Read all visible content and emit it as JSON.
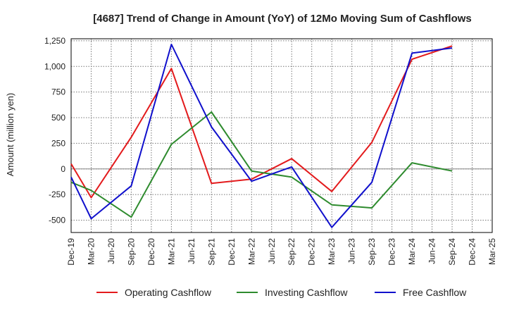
{
  "chart_data": {
    "type": "line",
    "title": "[4687]  Trend of Change in Amount (YoY) of 12Mo Moving Sum of Cashflows",
    "xlabel": "",
    "ylabel": "Amount (million yen)",
    "ylim": [
      -620,
      1270
    ],
    "yticks": [
      -500,
      -250,
      0,
      250,
      500,
      750,
      1000,
      1250
    ],
    "ytick_labels": [
      "-500",
      "-250",
      "0",
      "250",
      "500",
      "750",
      "1,000",
      "1,250"
    ],
    "categories": [
      "Dec-19",
      "Mar-20",
      "Jun-20",
      "Sep-20",
      "Dec-20",
      "Mar-21",
      "Jun-21",
      "Sep-21",
      "Dec-21",
      "Mar-22",
      "Jun-22",
      "Sep-22",
      "Dec-22",
      "Mar-23",
      "Jun-23",
      "Sep-23",
      "Dec-23",
      "Mar-24",
      "Jun-24",
      "Sep-24",
      "Dec-24",
      "Mar-25"
    ],
    "grid": true,
    "legend_position": "bottom",
    "series": [
      {
        "name": "Operating Cashflow",
        "color": "#e31a1c",
        "values": [
          50,
          -280,
          null,
          310,
          null,
          980,
          null,
          -140,
          null,
          -100,
          null,
          100,
          null,
          -220,
          null,
          260,
          null,
          1070,
          null,
          1200,
          null,
          null
        ]
      },
      {
        "name": "Investing Cashflow",
        "color": "#2e8b2e",
        "values": [
          -130,
          -210,
          null,
          -470,
          null,
          240,
          null,
          555,
          null,
          -20,
          null,
          -80,
          null,
          -350,
          null,
          -380,
          null,
          60,
          null,
          -20,
          null,
          null
        ]
      },
      {
        "name": "Free Cashflow",
        "color": "#1010cc",
        "values": [
          -80,
          -485,
          null,
          -165,
          null,
          1215,
          null,
          410,
          null,
          -120,
          null,
          20,
          null,
          -570,
          null,
          -130,
          null,
          1130,
          null,
          1180,
          null,
          null
        ]
      }
    ]
  }
}
